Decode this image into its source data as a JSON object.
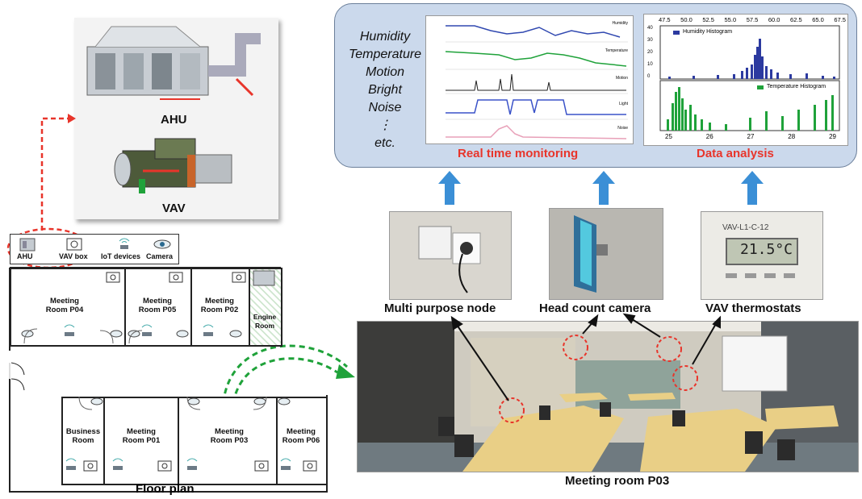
{
  "equipment": {
    "ahu_label": "AHU",
    "vav_label": "VAV"
  },
  "legend": {
    "items": [
      "AHU",
      "VAV box",
      "IoT devices",
      "Camera"
    ]
  },
  "floor_plan": {
    "caption": "Floor plan",
    "rooms": [
      {
        "line1": "Meeting",
        "line2": "Room P04"
      },
      {
        "line1": "Meeting",
        "line2": "Room P05"
      },
      {
        "line1": "Meeting",
        "line2": "Room P02"
      },
      {
        "line1": "Engine",
        "line2": "Room"
      },
      {
        "line1": "Business",
        "line2": "Room"
      },
      {
        "line1": "Meeting",
        "line2": "Room P01"
      },
      {
        "line1": "Meeting",
        "line2": "Room P03"
      },
      {
        "line1": "Meeting",
        "line2": "Room P06"
      }
    ]
  },
  "monitoring": {
    "sensors": [
      "Humidity",
      "Temperature",
      "Motion",
      "Bright",
      "Noise",
      "⋮",
      "etc."
    ],
    "realtime_caption": "Real time monitoring",
    "analysis_caption": "Data analysis",
    "realtime_legends": [
      "Humidity",
      "Temperature",
      "Motion",
      "Light",
      "Noise"
    ],
    "histogram_top_ticks": [
      "47.5",
      "50.0",
      "52.5",
      "55.0",
      "57.5",
      "60.0",
      "62.5",
      "65.0",
      "67.5"
    ],
    "histogram_bottom_ticks": [
      "25",
      "26",
      "27",
      "28",
      "29"
    ],
    "histogram_y_ticks": [
      "40",
      "30",
      "20",
      "10",
      "0"
    ],
    "humidity_legend": "Humidity Histogram",
    "temperature_legend": "Temperature Histogram"
  },
  "devices": {
    "node_caption": "Multi purpose node",
    "camera_caption": "Head count camera",
    "thermostat_caption": "VAV thermostats",
    "thermostat_id": "VAV-L1-C-12",
    "thermostat_reading": "21.5°C"
  },
  "room_photo": {
    "caption": "Meeting room P03"
  },
  "colors": {
    "red_accent": "#e8352b",
    "green_accent": "#1fa23a",
    "arrow_blue": "#3b8fd6",
    "panel_bg": "#cbd9ec"
  }
}
